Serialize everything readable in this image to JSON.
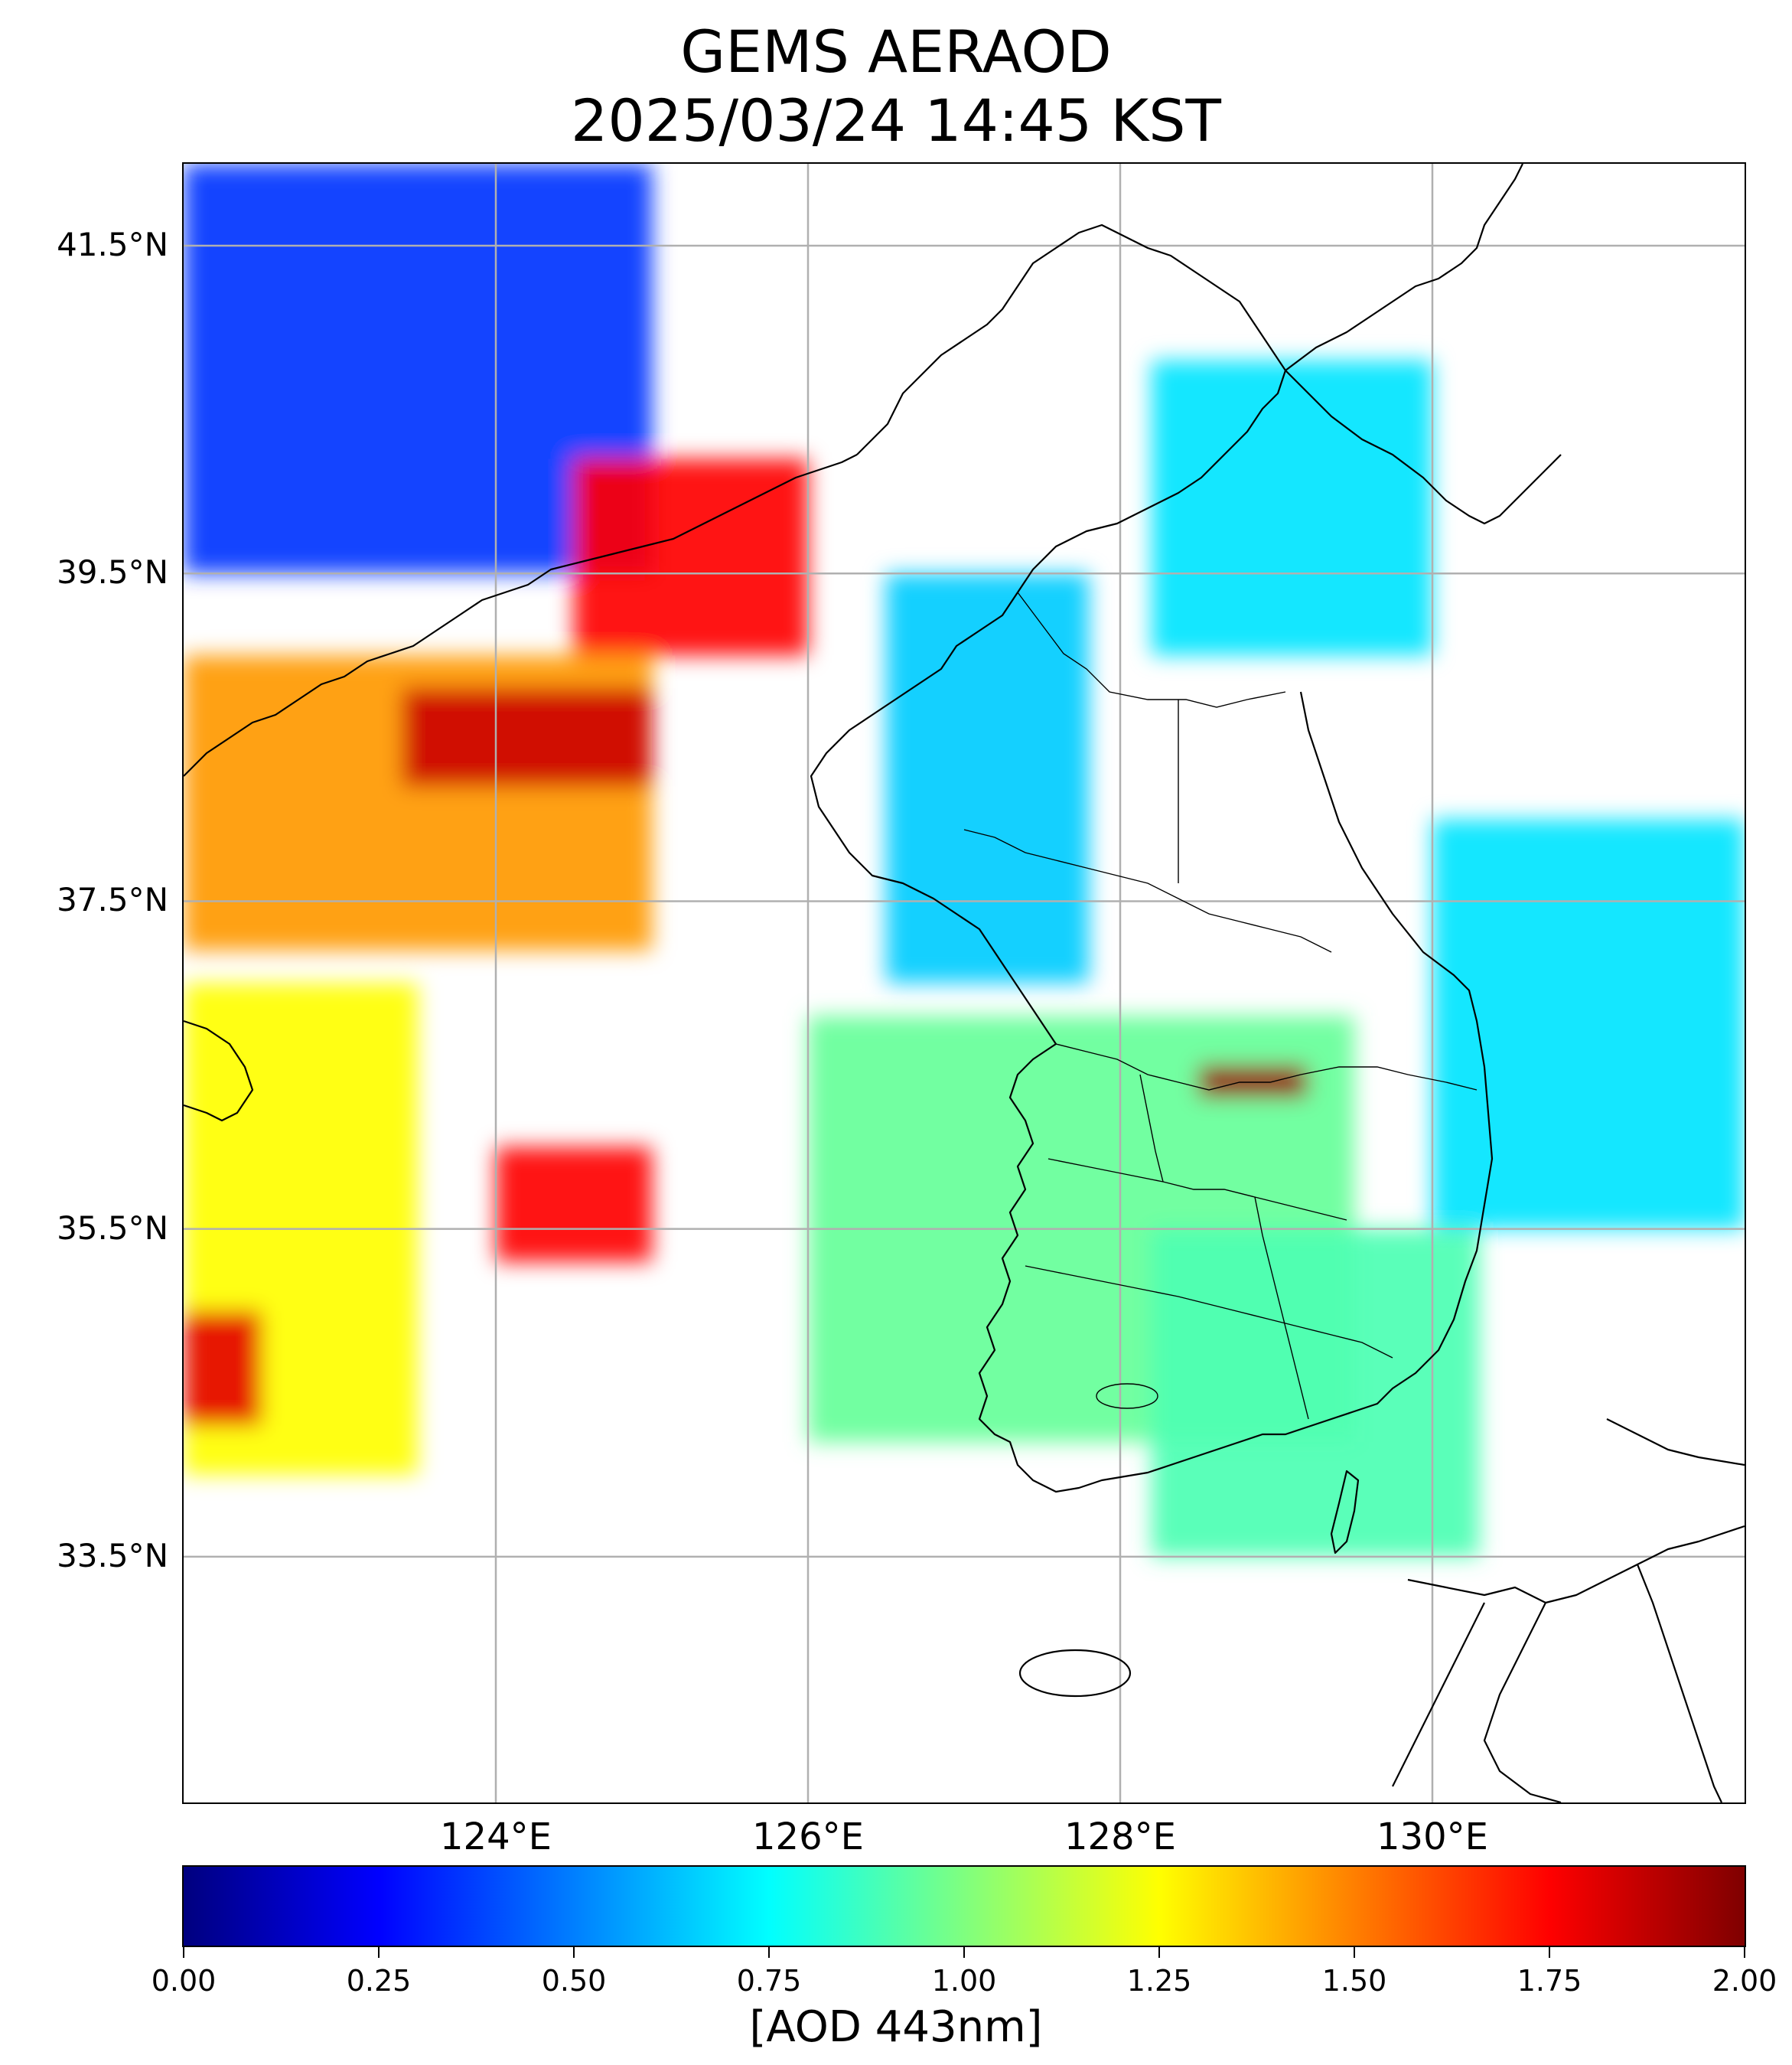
{
  "title": {
    "line1": "GEMS AERAOD",
    "line2": "2025/03/24 14:45 KST"
  },
  "map": {
    "projection": "PlateCarree",
    "lon_range": [
      122.0,
      132.0
    ],
    "lat_range": [
      32.0,
      42.0
    ],
    "gridlines": true,
    "lat_ticks": [
      {
        "value": 41.5,
        "label": "41.5°N"
      },
      {
        "value": 39.5,
        "label": "39.5°N"
      },
      {
        "value": 37.5,
        "label": "37.5°N"
      },
      {
        "value": 35.5,
        "label": "35.5°N"
      },
      {
        "value": 33.5,
        "label": "33.5°N"
      }
    ],
    "lon_ticks": [
      {
        "value": 124,
        "label": "124°E"
      },
      {
        "value": 126,
        "label": "126°E"
      },
      {
        "value": 128,
        "label": "128°E"
      },
      {
        "value": 130,
        "label": "130°E"
      }
    ],
    "coastlines": "Korean Peninsula, Liaodong peninsula, Shandong tip, western Japan (Kyushu / Chugoku)"
  },
  "chart_data": {
    "type": "heatmap",
    "variable": "AOD 443nm",
    "colormap": "jet",
    "vmin": 0.0,
    "vmax": 2.0,
    "regions": [
      {
        "area": "NW corner (Liaoning / northern Yellow Sea)",
        "lon": [
          122.0,
          125.0
        ],
        "lat": [
          39.5,
          42.0
        ],
        "aod": 0.35
      },
      {
        "area": "Bohai / Korea Bay plume",
        "lon": [
          124.5,
          126.0
        ],
        "lat": [
          39.0,
          40.2
        ],
        "aod": 1.75
      },
      {
        "area": "Yellow Sea west band",
        "lon": [
          122.0,
          125.0
        ],
        "lat": [
          37.2,
          39.0
        ],
        "aod": 1.45
      },
      {
        "area": "Yellow Sea diagonal plume",
        "lon": [
          123.4,
          125.0
        ],
        "lat": [
          38.2,
          38.8
        ],
        "aod": 1.85
      },
      {
        "area": "Shandong coast",
        "lon": [
          122.0,
          123.5
        ],
        "lat": [
          34.0,
          37.0
        ],
        "aod": 1.25
      },
      {
        "area": "SW corner hotspot",
        "lon": [
          122.0,
          122.5
        ],
        "lat": [
          34.3,
          35.0
        ],
        "aod": 1.8
      },
      {
        "area": "Southern Yellow Sea band",
        "lon": [
          124.0,
          125.0
        ],
        "lat": [
          35.3,
          36.0
        ],
        "aod": 1.75
      },
      {
        "area": "Southern Korea",
        "lon": [
          126.0,
          129.5
        ],
        "lat": [
          34.2,
          36.8
        ],
        "aod": 0.95
      },
      {
        "area": "Central Korea",
        "lon": [
          126.5,
          127.8
        ],
        "lat": [
          37.0,
          39.5
        ],
        "aod": 0.65
      },
      {
        "area": "East Sea north",
        "lon": [
          128.2,
          130.0
        ],
        "lat": [
          39.0,
          40.8
        ],
        "aod": 0.7
      },
      {
        "area": "East Sea east",
        "lon": [
          130.0,
          132.0
        ],
        "lat": [
          35.5,
          38.0
        ],
        "aod": 0.7
      },
      {
        "area": "Korea Strait",
        "lon": [
          128.2,
          130.3
        ],
        "lat": [
          33.5,
          35.5
        ],
        "aod": 0.9
      },
      {
        "area": "Eastern hotspot",
        "lon": [
          128.5,
          129.2
        ],
        "lat": [
          36.3,
          36.5
        ],
        "aod": 1.95
      }
    ]
  },
  "colorbar": {
    "ticks": [
      "0.00",
      "0.25",
      "0.50",
      "0.75",
      "1.00",
      "1.25",
      "1.50",
      "1.75",
      "2.00"
    ],
    "label": "[AOD 443nm]"
  }
}
